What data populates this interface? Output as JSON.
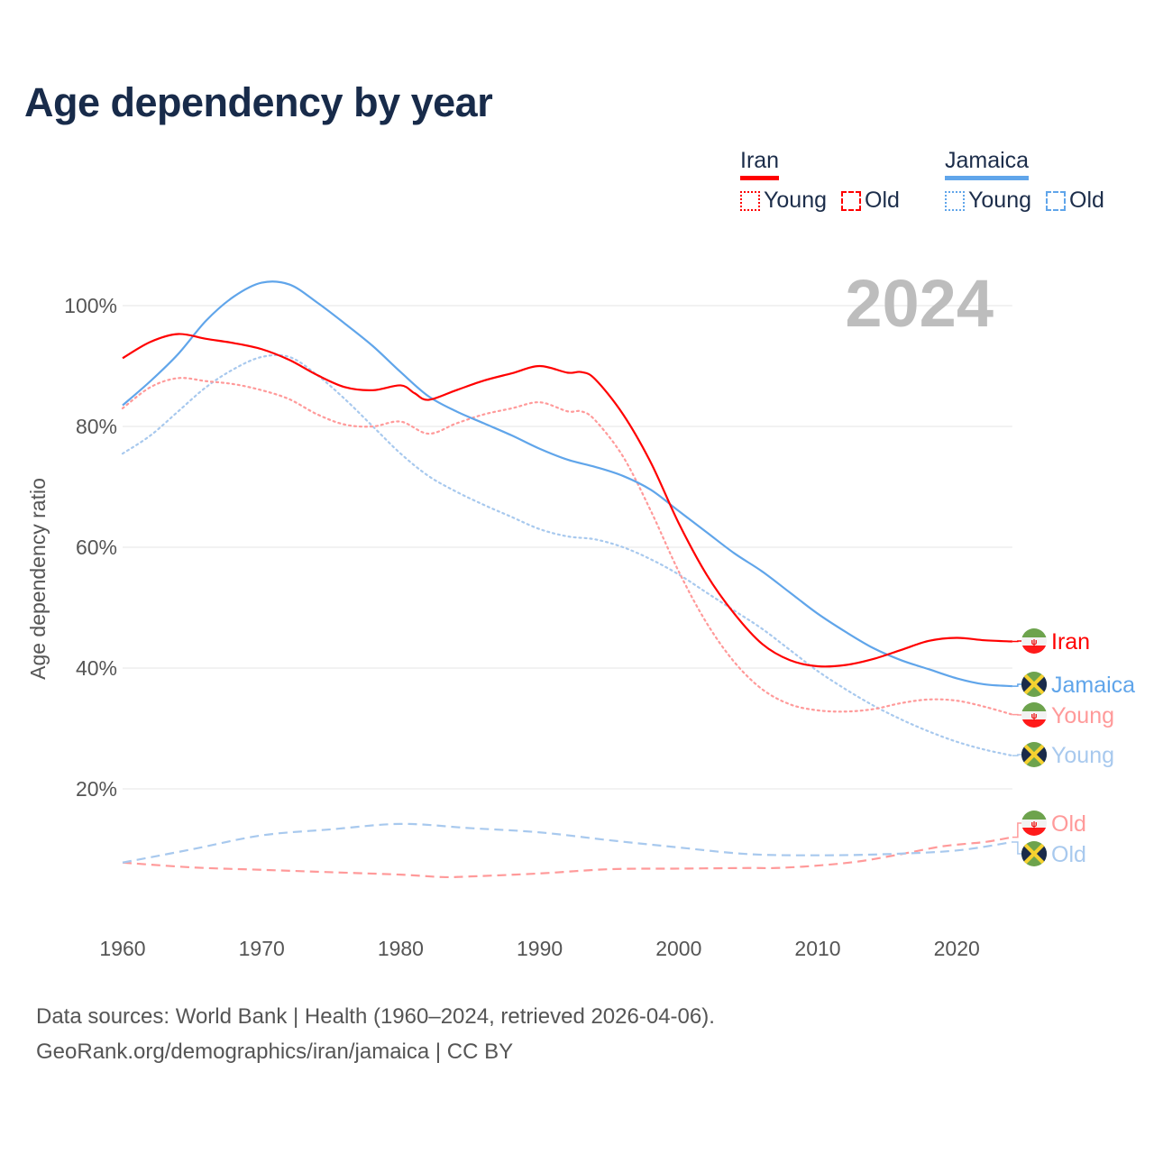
{
  "title": "Age dependency by year",
  "legend": {
    "groups": [
      {
        "name": "Iran",
        "color": "#ff0000",
        "young": "Young",
        "old": "Old"
      },
      {
        "name": "Jamaica",
        "color": "#60a5ea",
        "young": "Young",
        "old": "Old"
      }
    ]
  },
  "year_label": "2024",
  "footer": {
    "line1": "Data sources: World Bank | Health (1960–2024, retrieved 2026-04-06).",
    "line2": "GeoRank.org/demographics/iran/jamaica | CC BY"
  },
  "chart_data": {
    "type": "line",
    "title": "Age dependency by year",
    "xlabel": "",
    "ylabel": "Age dependency ratio",
    "xlim": [
      1960,
      2024
    ],
    "ylim": [
      0,
      110
    ],
    "xticks": [
      1960,
      1970,
      1980,
      1990,
      2000,
      2010,
      2020
    ],
    "xtick_labels": [
      "1960",
      "1970",
      "1980",
      "1990",
      "2000",
      "2010",
      "2020"
    ],
    "yticks": [
      20,
      40,
      60,
      80,
      100
    ],
    "ytick_labels": [
      "20%",
      "40%",
      "60%",
      "80%",
      "100%"
    ],
    "grid": true,
    "legend_position": "top-right",
    "series": [
      {
        "name": "Iran",
        "label": "Iran",
        "country": "iran",
        "color": "#ff0000",
        "style": "solid",
        "opacity": 1,
        "x": [
          1960,
          1962,
          1964,
          1966,
          1968,
          1970,
          1972,
          1974,
          1976,
          1978,
          1980,
          1981,
          1982,
          1984,
          1986,
          1988,
          1990,
          1992,
          1993,
          1994,
          1996,
          1998,
          2000,
          2002,
          2004,
          2006,
          2008,
          2010,
          2012,
          2014,
          2016,
          2018,
          2020,
          2022,
          2024
        ],
        "y": [
          91.3,
          94,
          95.3,
          94.5,
          93.8,
          92.8,
          91,
          88.5,
          86.5,
          86,
          86.8,
          85.5,
          84.4,
          86,
          87.6,
          88.8,
          90,
          88.9,
          89,
          87.8,
          82,
          74,
          64,
          55.5,
          49,
          44,
          41.3,
          40.3,
          40.5,
          41.5,
          43,
          44.5,
          45,
          44.6,
          44.4
        ]
      },
      {
        "name": "Jamaica",
        "label": "Jamaica",
        "country": "jamaica",
        "color": "#60a5ea",
        "style": "solid",
        "opacity": 1,
        "x": [
          1960,
          1962,
          1964,
          1966,
          1968,
          1970,
          1972,
          1974,
          1976,
          1978,
          1980,
          1982,
          1984,
          1986,
          1988,
          1990,
          1992,
          1994,
          1996,
          1998,
          2000,
          2002,
          2004,
          2006,
          2008,
          2010,
          2012,
          2014,
          2016,
          2018,
          2020,
          2022,
          2024
        ],
        "y": [
          83.5,
          87.5,
          92,
          97.5,
          101.5,
          103.8,
          103.5,
          100.5,
          97,
          93.3,
          89,
          85,
          82.5,
          80.5,
          78.5,
          76.3,
          74.5,
          73.3,
          71.8,
          69.5,
          66,
          62.5,
          59,
          56,
          52.5,
          49,
          46,
          43.3,
          41.3,
          39.8,
          38.3,
          37.3,
          37
        ]
      },
      {
        "name": "Iran Young",
        "label": "Young",
        "country": "iran",
        "color": "#ff9a9a",
        "style": "dotted",
        "opacity": 1,
        "x": [
          1960,
          1962,
          1964,
          1966,
          1968,
          1970,
          1972,
          1974,
          1976,
          1978,
          1980,
          1982,
          1984,
          1986,
          1988,
          1990,
          1992,
          1993,
          1994,
          1996,
          1998,
          2000,
          2002,
          2004,
          2006,
          2008,
          2010,
          2012,
          2014,
          2016,
          2018,
          2020,
          2022,
          2024
        ],
        "y": [
          83,
          86.5,
          88,
          87.5,
          87,
          86,
          84.5,
          82,
          80.3,
          80,
          80.8,
          78.8,
          80.5,
          82,
          83,
          84,
          82.5,
          82.5,
          81,
          75,
          66,
          56,
          47.5,
          41,
          36.5,
          34,
          33,
          32.8,
          33.2,
          34.2,
          34.8,
          34.6,
          33.6,
          32.3
        ]
      },
      {
        "name": "Jamaica Young",
        "label": "Young",
        "country": "jamaica",
        "color": "#a8c9ee",
        "style": "dotted",
        "opacity": 1,
        "x": [
          1960,
          1962,
          1964,
          1966,
          1968,
          1970,
          1972,
          1974,
          1976,
          1978,
          1980,
          1982,
          1984,
          1986,
          1988,
          1990,
          1992,
          1994,
          1996,
          1998,
          2000,
          2002,
          2004,
          2006,
          2008,
          2010,
          2012,
          2014,
          2016,
          2018,
          2020,
          2022,
          2024
        ],
        "y": [
          75.5,
          78.5,
          82.5,
          86.5,
          89.5,
          91.5,
          91.5,
          88.5,
          84.5,
          80,
          75.5,
          71.8,
          69.2,
          67,
          65,
          63,
          61.8,
          61.3,
          60,
          58,
          55.5,
          52.5,
          49.5,
          46.5,
          43,
          39.5,
          36.5,
          33.8,
          31.5,
          29.5,
          27.8,
          26.5,
          25.5
        ]
      },
      {
        "name": "Iran Old",
        "label": "Old",
        "country": "iran",
        "color": "#ff9a9a",
        "style": "dashed",
        "opacity": 1,
        "x": [
          1960,
          1965,
          1970,
          1975,
          1980,
          1983,
          1985,
          1990,
          1995,
          2000,
          2005,
          2007,
          2010,
          2013,
          2016,
          2019,
          2022,
          2024
        ],
        "y": [
          7.8,
          7,
          6.6,
          6.2,
          5.8,
          5.4,
          5.5,
          6,
          6.7,
          6.8,
          6.9,
          6.9,
          7.3,
          8,
          9.2,
          10.5,
          11.2,
          12
        ]
      },
      {
        "name": "Jamaica Old",
        "label": "Old",
        "country": "jamaica",
        "color": "#a8c9ee",
        "style": "dashed",
        "opacity": 1,
        "x": [
          1960,
          1965,
          1970,
          1975,
          1980,
          1985,
          1990,
          1995,
          2000,
          2005,
          2010,
          2015,
          2020,
          2024
        ],
        "y": [
          7.8,
          10,
          12.3,
          13.3,
          14.2,
          13.5,
          12.8,
          11.5,
          10.3,
          9.2,
          9,
          9.2,
          9.8,
          11.2
        ]
      }
    ]
  }
}
